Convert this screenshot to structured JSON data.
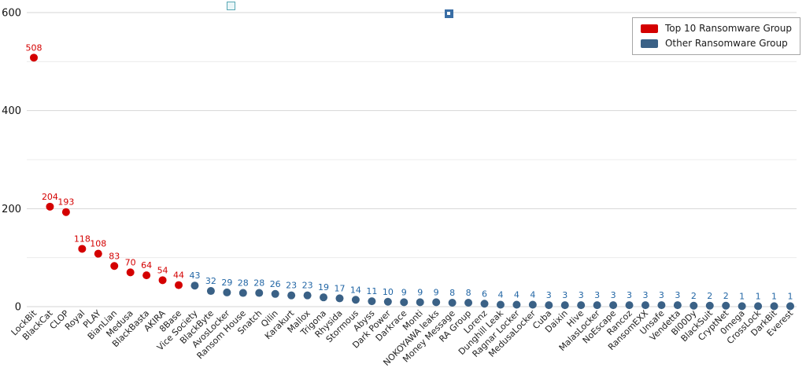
{
  "legend": {
    "top10_label": "Top 10 Ransomware Group",
    "other_label": "Other Ransomware Group"
  },
  "colors": {
    "top10": "#d40000",
    "top10_label": "#d40000",
    "other": "#3a6186",
    "other_label": "#2266a5",
    "grid_major": "#d6d6d6",
    "grid_minor": "#ececec",
    "axis_text": "#111111",
    "xlabel_text": "#222222"
  },
  "chart_data": {
    "type": "scatter",
    "title": "",
    "xlabel": "",
    "ylabel": "",
    "ylim": [
      0,
      600
    ],
    "yticks": [
      0,
      200,
      400,
      600
    ],
    "yticks_minor": [
      100,
      300,
      500
    ],
    "grid": true,
    "legend_position": "top-right",
    "top10_count": 10,
    "categories": [
      "LockBit",
      "BlackCat",
      "CLOP",
      "Royal",
      "PLAY",
      "BianLian",
      "Medusa",
      "BlackBasta",
      "AKIRA",
      "8Base",
      "Vice Society",
      "BlackByte",
      "AvosLocker",
      "Ransom House",
      "Snatch",
      "Qilin",
      "Karakurt",
      "Mallox",
      "Trigona",
      "Rhysida",
      "Stormous",
      "Abyss",
      "Dark Power",
      "Darkrace",
      "Monti",
      "NOKOYAWA leaks",
      "Money Message",
      "RA Group",
      "Lorenz",
      "Dunghill Leak",
      "Ragnar Locker",
      "MedusaLocker",
      "Cuba",
      "Daixin",
      "Hive",
      "MalasLocker",
      "NoEscape",
      "Rancoz",
      "RansomEXX",
      "Unsafe",
      "Vendetta",
      "Bl00Dy",
      "BlackSuit",
      "CryptNet",
      "0mega",
      "CrossLock",
      "DarkBit",
      "Everest"
    ],
    "values": [
      508,
      204,
      193,
      118,
      108,
      83,
      70,
      64,
      54,
      44,
      43,
      32,
      29,
      28,
      28,
      26,
      23,
      23,
      19,
      17,
      14,
      11,
      10,
      9,
      9,
      9,
      8,
      8,
      6,
      4,
      4,
      4,
      3,
      3,
      3,
      3,
      3,
      3,
      3,
      3,
      3,
      2,
      2,
      2,
      1,
      1,
      1,
      1
    ],
    "series": [
      {
        "name": "Top 10 Ransomware Group",
        "count": 10
      },
      {
        "name": "Other Ransomware Group",
        "count": 38
      }
    ]
  }
}
